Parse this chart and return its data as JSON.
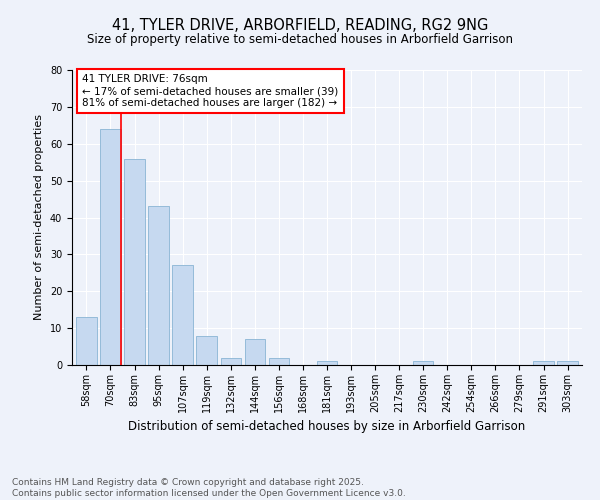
{
  "title": "41, TYLER DRIVE, ARBORFIELD, READING, RG2 9NG",
  "subtitle": "Size of property relative to semi-detached houses in Arborfield Garrison",
  "xlabel": "Distribution of semi-detached houses by size in Arborfield Garrison",
  "ylabel": "Number of semi-detached properties",
  "categories": [
    "58sqm",
    "70sqm",
    "83sqm",
    "95sqm",
    "107sqm",
    "119sqm",
    "132sqm",
    "144sqm",
    "156sqm",
    "168sqm",
    "181sqm",
    "193sqm",
    "205sqm",
    "217sqm",
    "230sqm",
    "242sqm",
    "254sqm",
    "266sqm",
    "279sqm",
    "291sqm",
    "303sqm"
  ],
  "values": [
    13,
    64,
    56,
    43,
    27,
    8,
    2,
    7,
    2,
    0,
    1,
    0,
    0,
    0,
    1,
    0,
    0,
    0,
    0,
    1,
    1
  ],
  "bar_color": "#c6d9f0",
  "bar_edge_color": "#8ab4d4",
  "vline_color": "red",
  "annotation_title": "41 TYLER DRIVE: 76sqm",
  "annotation_line1": "← 17% of semi-detached houses are smaller (39)",
  "annotation_line2": "81% of semi-detached houses are larger (182) →",
  "annotation_box_color": "white",
  "annotation_box_edge": "red",
  "ylim": [
    0,
    80
  ],
  "yticks": [
    0,
    10,
    20,
    30,
    40,
    50,
    60,
    70,
    80
  ],
  "footer": "Contains HM Land Registry data © Crown copyright and database right 2025.\nContains public sector information licensed under the Open Government Licence v3.0.",
  "background_color": "#eef2fa",
  "grid_color": "#ffffff",
  "title_fontsize": 10.5,
  "subtitle_fontsize": 8.5,
  "xlabel_fontsize": 8.5,
  "ylabel_fontsize": 8,
  "tick_fontsize": 7,
  "footer_fontsize": 6.5,
  "ann_fontsize": 7.5
}
